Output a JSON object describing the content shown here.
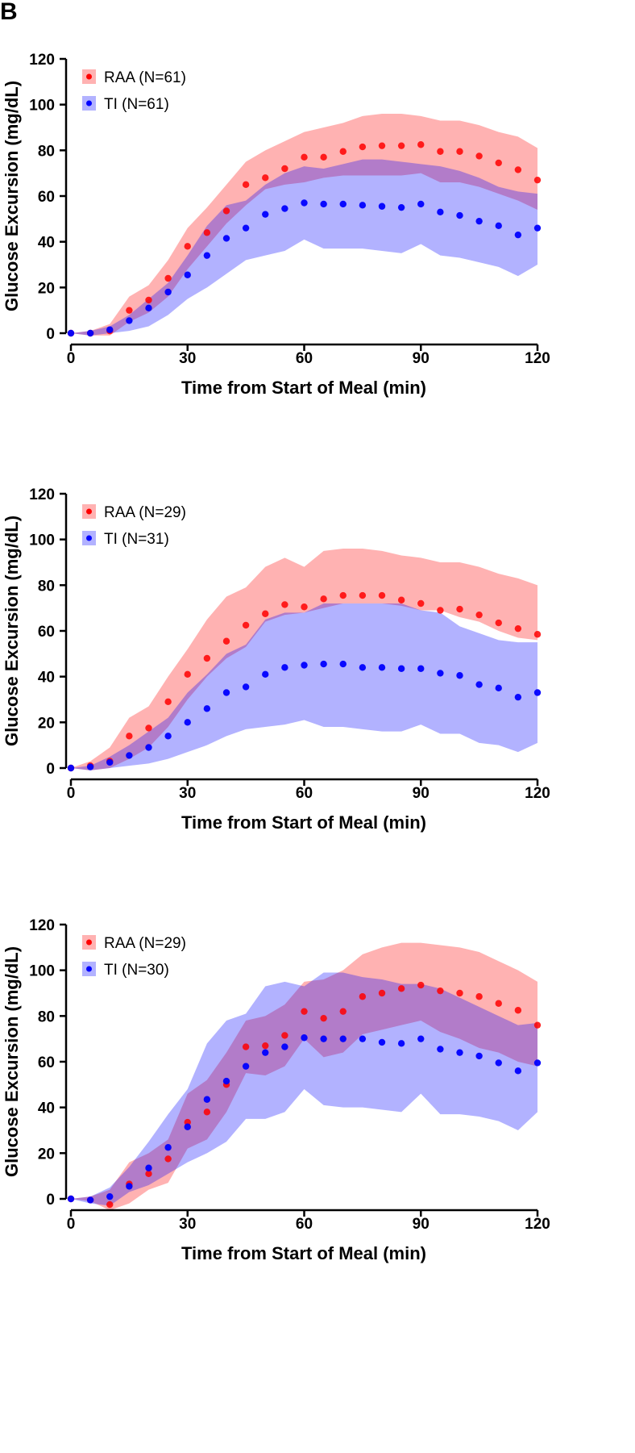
{
  "panel_label": "B",
  "colors": {
    "raa": "#ff0000",
    "ti": "#0000ff"
  },
  "chart_data": [
    {
      "type": "scatter",
      "title": "",
      "xlabel": "Time from Start of Meal (min)",
      "ylabel": "Glucose Excursion (mg/dL)",
      "xlim": [
        0,
        120
      ],
      "ylim": [
        0,
        120
      ],
      "xticks": [
        "0",
        "30",
        "60",
        "90",
        "120"
      ],
      "yticks": [
        "0",
        "20",
        "40",
        "60",
        "80",
        "100",
        "120"
      ],
      "legend": "top-left",
      "x": [
        0,
        5,
        10,
        15,
        20,
        25,
        30,
        35,
        40,
        45,
        50,
        55,
        60,
        65,
        70,
        75,
        80,
        85,
        90,
        95,
        100,
        105,
        110,
        115,
        120
      ],
      "series": [
        {
          "name": "RAA (N=61)",
          "mean": [
            0,
            0,
            1,
            10,
            14.5,
            24,
            38,
            44,
            53.5,
            65,
            68,
            72,
            77,
            77,
            79.5,
            81.5,
            82,
            82,
            82.5,
            79.5,
            79.5,
            77.5,
            74.5,
            71.5,
            67
          ],
          "upper": [
            0,
            1,
            4,
            16,
            21,
            32,
            46,
            55,
            65,
            75,
            80,
            84,
            88,
            90,
            92,
            95,
            96,
            96,
            95,
            93,
            93,
            91,
            88,
            86,
            81
          ],
          "lower": [
            0,
            -1,
            -1,
            5,
            9,
            16,
            28,
            38,
            48,
            56,
            63,
            65,
            66,
            68,
            69,
            69,
            69,
            69,
            70,
            66,
            66,
            64,
            61,
            58,
            54
          ]
        },
        {
          "name": "TI (N=61)",
          "mean": [
            0,
            0,
            1.5,
            5.5,
            11,
            18,
            25.5,
            34,
            41.5,
            46,
            52,
            54.5,
            57,
            56.5,
            56.5,
            56,
            55.5,
            55,
            56.5,
            53,
            51.5,
            49,
            47,
            43,
            46
          ],
          "upper": [
            0,
            1,
            3,
            8,
            15,
            22,
            34,
            47,
            56,
            58,
            65,
            70,
            73,
            72,
            74,
            76,
            76,
            75,
            74,
            73,
            71,
            68,
            64,
            62,
            61
          ],
          "lower": [
            0,
            -1,
            0,
            1,
            3,
            8,
            15,
            20,
            26,
            32,
            34,
            36,
            41,
            37,
            37,
            37,
            36,
            35,
            39,
            34,
            33,
            31,
            29,
            25,
            30
          ]
        }
      ]
    },
    {
      "type": "scatter",
      "title": "",
      "xlabel": "Time from Start of Meal (min)",
      "ylabel": "Glucose Excursion (mg/dL)",
      "xlim": [
        0,
        120
      ],
      "ylim": [
        0,
        120
      ],
      "xticks": [
        "0",
        "30",
        "60",
        "90",
        "120"
      ],
      "yticks": [
        "0",
        "20",
        "40",
        "60",
        "80",
        "100",
        "120"
      ],
      "legend": "top-left",
      "x": [
        0,
        5,
        10,
        15,
        20,
        25,
        30,
        35,
        40,
        45,
        50,
        55,
        60,
        65,
        70,
        75,
        80,
        85,
        90,
        95,
        100,
        105,
        110,
        115,
        120
      ],
      "series": [
        {
          "name": "RAA (N=29)",
          "mean": [
            0,
            1,
            3,
            14,
            17.5,
            29,
            41,
            48,
            55.5,
            62.5,
            67.5,
            71.5,
            70.5,
            74,
            75.5,
            75.5,
            75.5,
            73.5,
            72,
            69,
            69.5,
            67,
            63.5,
            61,
            58.5
          ],
          "upper": [
            0,
            3,
            9,
            22,
            27,
            40,
            52,
            65,
            75,
            79,
            88,
            92,
            88,
            95,
            96,
            96,
            95,
            93,
            92,
            90,
            90,
            88,
            85,
            83,
            80
          ],
          "lower": [
            0,
            -1,
            0,
            4,
            9,
            18,
            30,
            40,
            48,
            53,
            64,
            67,
            68,
            70,
            72,
            72,
            72,
            71,
            69,
            69,
            66,
            64,
            60,
            57,
            56
          ]
        },
        {
          "name": "TI (N=31)",
          "mean": [
            0,
            0.5,
            2.5,
            5.5,
            9,
            14,
            20,
            26,
            33,
            35.5,
            41,
            44,
            45,
            45.5,
            45.5,
            44,
            44,
            43.5,
            43.5,
            41.5,
            40.5,
            36.5,
            35,
            31,
            33
          ],
          "upper": [
            0,
            1,
            5,
            10,
            16,
            22,
            33,
            41,
            50,
            54,
            65,
            68,
            68,
            72,
            72,
            72,
            72,
            72,
            69,
            68,
            62,
            59,
            56,
            55,
            55
          ],
          "lower": [
            0,
            -1,
            0,
            1,
            2,
            4,
            7,
            10,
            14,
            17,
            18,
            19,
            21,
            18,
            18,
            17,
            16,
            16,
            19,
            15,
            15,
            11,
            10,
            7,
            11
          ]
        }
      ]
    },
    {
      "type": "scatter",
      "title": "",
      "xlabel": "Time from Start of Meal (min)",
      "ylabel": "Glucose Excursion (mg/dL)",
      "xlim": [
        0,
        120
      ],
      "ylim": [
        0,
        120
      ],
      "xticks": [
        "0",
        "30",
        "60",
        "90",
        "120"
      ],
      "yticks": [
        "0",
        "20",
        "40",
        "60",
        "80",
        "100",
        "120"
      ],
      "legend": "top-left",
      "x": [
        0,
        5,
        10,
        15,
        20,
        25,
        30,
        35,
        40,
        45,
        50,
        55,
        60,
        65,
        70,
        75,
        80,
        85,
        90,
        95,
        100,
        105,
        110,
        115,
        120
      ],
      "series": [
        {
          "name": "RAA (N=29)",
          "mean": [
            0,
            -0.5,
            -2.5,
            6.5,
            11,
            17.5,
            33.5,
            38,
            50,
            66.5,
            67,
            71.5,
            82,
            79,
            82,
            88.5,
            90,
            92,
            93.5,
            91,
            90,
            88.5,
            85.5,
            82.5,
            76
          ],
          "upper": [
            0,
            1,
            4,
            16,
            20,
            26,
            46,
            52,
            64,
            78,
            80,
            85,
            95,
            96,
            100,
            107,
            110,
            112,
            112,
            111,
            110,
            108,
            104,
            100,
            95
          ],
          "lower": [
            0,
            -1,
            -5,
            -2,
            4,
            7,
            22,
            26,
            38,
            55,
            54,
            58,
            70,
            62,
            64,
            72,
            74,
            76,
            78,
            73,
            70,
            66,
            64,
            60,
            58
          ]
        },
        {
          "name": "TI (N=30)",
          "mean": [
            0,
            -0.5,
            1,
            5.5,
            13.5,
            22.5,
            31.5,
            43.5,
            51.5,
            58,
            64,
            66.5,
            70.5,
            70,
            70,
            70,
            68.5,
            68,
            70,
            65.5,
            64,
            62.5,
            59.5,
            56,
            59.5
          ],
          "upper": [
            0,
            1,
            5,
            14,
            25,
            37,
            48,
            68,
            78,
            81,
            93,
            95,
            93,
            99,
            99,
            97,
            96,
            94,
            94,
            92,
            88,
            84,
            80,
            76,
            77
          ],
          "lower": [
            0,
            -2,
            -3,
            3,
            6,
            11,
            16,
            20,
            25,
            35,
            35,
            38,
            48,
            41,
            40,
            40,
            39,
            38,
            46,
            37,
            37,
            36,
            34,
            30,
            38
          ]
        }
      ]
    }
  ]
}
